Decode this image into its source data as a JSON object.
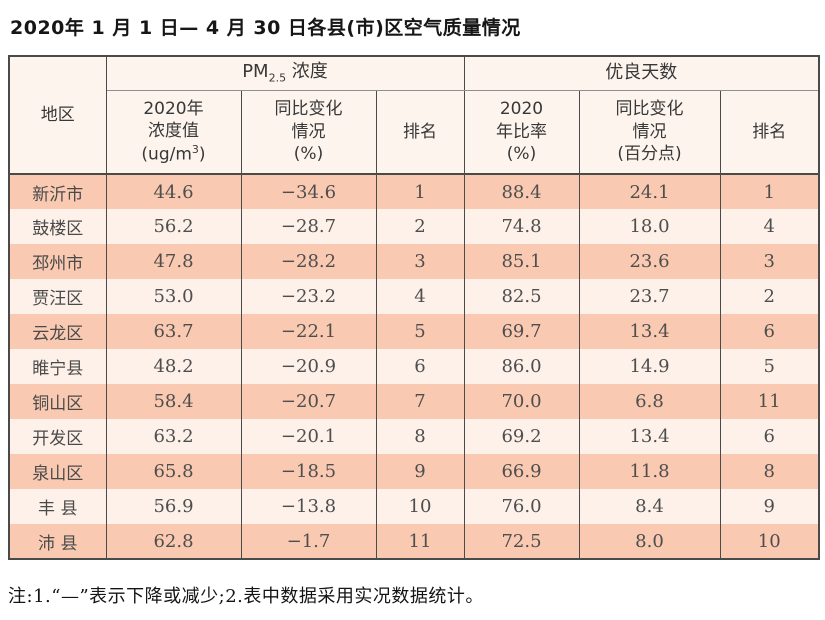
{
  "page": {
    "title": "2020年 1 月 1 日— 4 月 30 日各县(市)区空气质量情况",
    "footnote": "注:1.“—”表示下降或减少;2.表中数据采用实况数据统计。"
  },
  "colors": {
    "row_dark": "#f9cab1",
    "row_light": "#fdf1e9",
    "header_bg": "#fdf4ed",
    "border_dark": "#4a4a4a",
    "border_gray": "#8f8f8f"
  },
  "table": {
    "header": {
      "region": "地区",
      "pm_group": {
        "prefix": "PM",
        "sub": "2.5",
        "suffix": " 浓度"
      },
      "days_group": "优良天数",
      "pm_value": {
        "line1": "2020年",
        "line2": "浓度值",
        "line3_pre": "(ug/m",
        "line3_sup": "3",
        "line3_post": ")"
      },
      "pm_change": {
        "line1": "同比变化",
        "line2": "情况",
        "line3": "(%)"
      },
      "rank_pm": "排名",
      "days_ratio": {
        "line1": "2020",
        "line2": "年比率",
        "line3": "(%)"
      },
      "days_change": {
        "line1": "同比变化",
        "line2": "情况",
        "line3": "(百分点)"
      },
      "rank_days": "排名"
    },
    "rows": [
      {
        "region": "新沂市",
        "pm_value": "44.6",
        "pm_change": "−34.6",
        "pm_rank": "1",
        "days_ratio": "88.4",
        "days_change": "24.1",
        "days_rank": "1"
      },
      {
        "region": "鼓楼区",
        "pm_value": "56.2",
        "pm_change": "−28.7",
        "pm_rank": "2",
        "days_ratio": "74.8",
        "days_change": "18.0",
        "days_rank": "4"
      },
      {
        "region": "邳州市",
        "pm_value": "47.8",
        "pm_change": "−28.2",
        "pm_rank": "3",
        "days_ratio": "85.1",
        "days_change": "23.6",
        "days_rank": "3"
      },
      {
        "region": "贾汪区",
        "pm_value": "53.0",
        "pm_change": "−23.2",
        "pm_rank": "4",
        "days_ratio": "82.5",
        "days_change": "23.7",
        "days_rank": "2"
      },
      {
        "region": "云龙区",
        "pm_value": "63.7",
        "pm_change": "−22.1",
        "pm_rank": "5",
        "days_ratio": "69.7",
        "days_change": "13.4",
        "days_rank": "6"
      },
      {
        "region": "睢宁县",
        "pm_value": "48.2",
        "pm_change": "−20.9",
        "pm_rank": "6",
        "days_ratio": "86.0",
        "days_change": "14.9",
        "days_rank": "5"
      },
      {
        "region": "铜山区",
        "pm_value": "58.4",
        "pm_change": "−20.7",
        "pm_rank": "7",
        "days_ratio": "70.0",
        "days_change": "6.8",
        "days_rank": "11"
      },
      {
        "region": "开发区",
        "pm_value": "63.2",
        "pm_change": "−20.1",
        "pm_rank": "8",
        "days_ratio": "69.2",
        "days_change": "13.4",
        "days_rank": "6"
      },
      {
        "region": "泉山区",
        "pm_value": "65.8",
        "pm_change": "−18.5",
        "pm_rank": "9",
        "days_ratio": "66.9",
        "days_change": "11.8",
        "days_rank": "8"
      },
      {
        "region": "丰 县",
        "pm_value": "56.9",
        "pm_change": "−13.8",
        "pm_rank": "10",
        "days_ratio": "76.0",
        "days_change": "8.4",
        "days_rank": "9"
      },
      {
        "region": "沛 县",
        "pm_value": "62.8",
        "pm_change": "−1.7",
        "pm_rank": "11",
        "days_ratio": "72.5",
        "days_change": "8.0",
        "days_rank": "10"
      }
    ]
  }
}
